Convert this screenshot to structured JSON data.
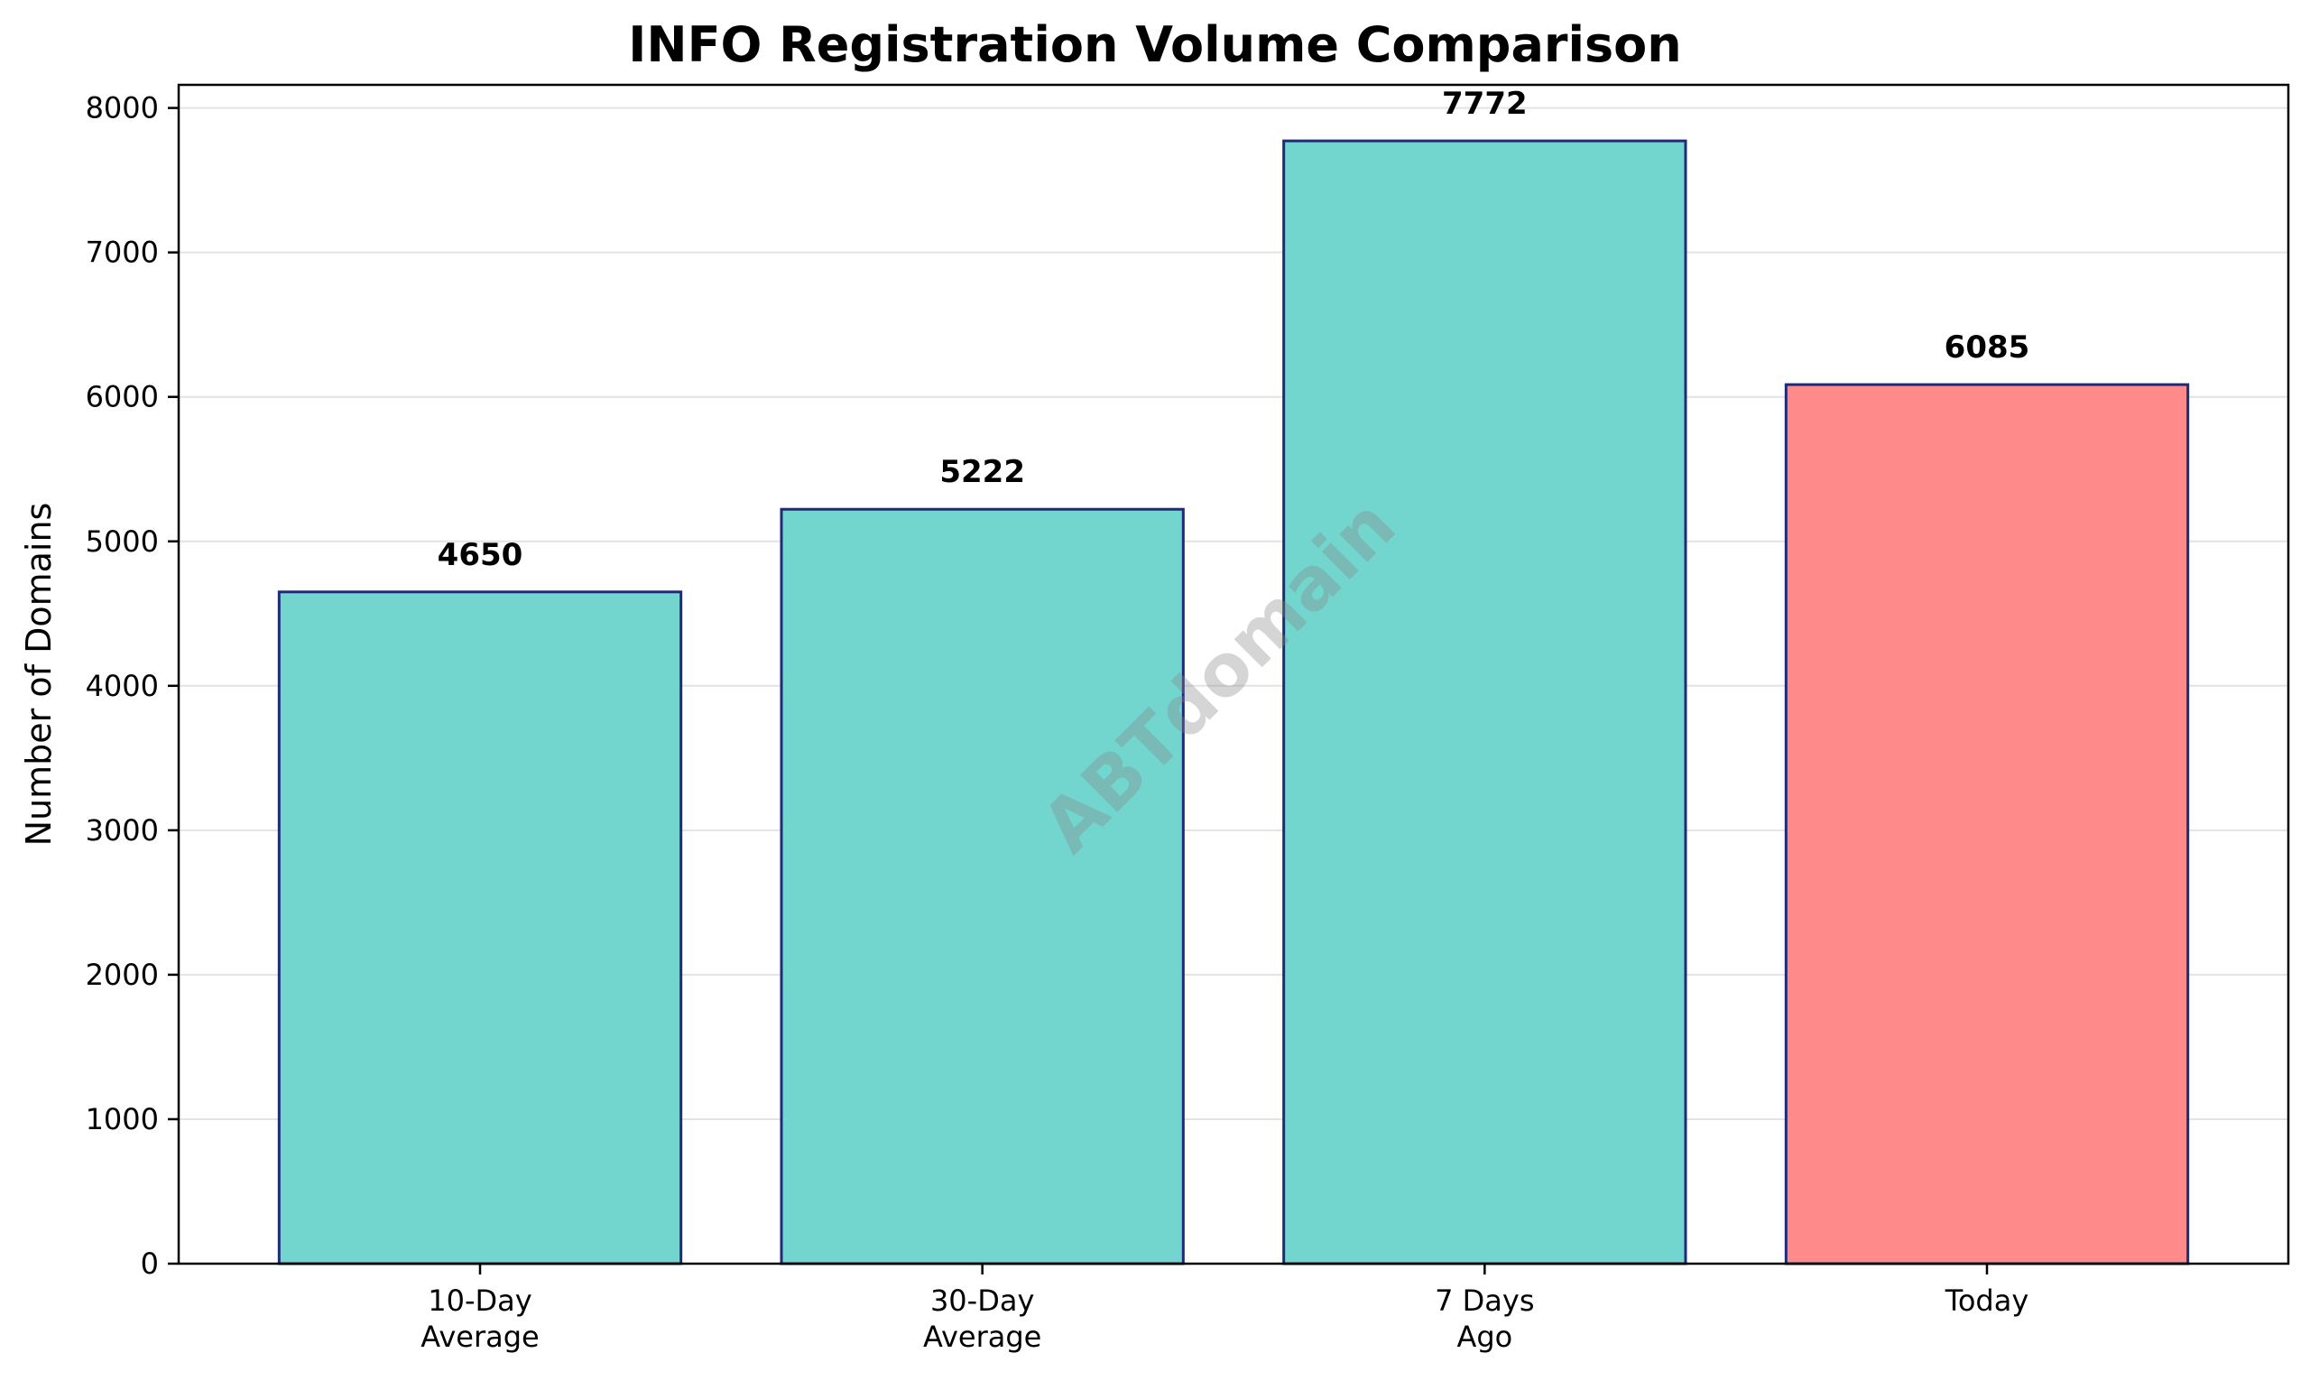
{
  "chart_data": {
    "type": "bar",
    "title": "INFO Registration Volume Comparison",
    "xlabel": "",
    "ylabel": "Number of Domains",
    "categories": [
      [
        "10-Day",
        "Average"
      ],
      [
        "30-Day",
        "Average"
      ],
      [
        "7 Days",
        "Ago"
      ],
      [
        "Today"
      ]
    ],
    "values": [
      4650,
      5222,
      7772,
      6085
    ],
    "data_labels": [
      "4650",
      "5222",
      "7772",
      "6085"
    ],
    "ylim": [
      0,
      8160
    ],
    "yticks": [
      0,
      1000,
      2000,
      3000,
      4000,
      5000,
      6000,
      7000,
      8000
    ],
    "grid": "horizontal",
    "bar_colors": [
      "#72d6cf",
      "#72d6cf",
      "#72d6cf",
      "#ff8a8a"
    ],
    "bar_edge_color": "#1f2a78",
    "watermark": "ABTdomain"
  }
}
